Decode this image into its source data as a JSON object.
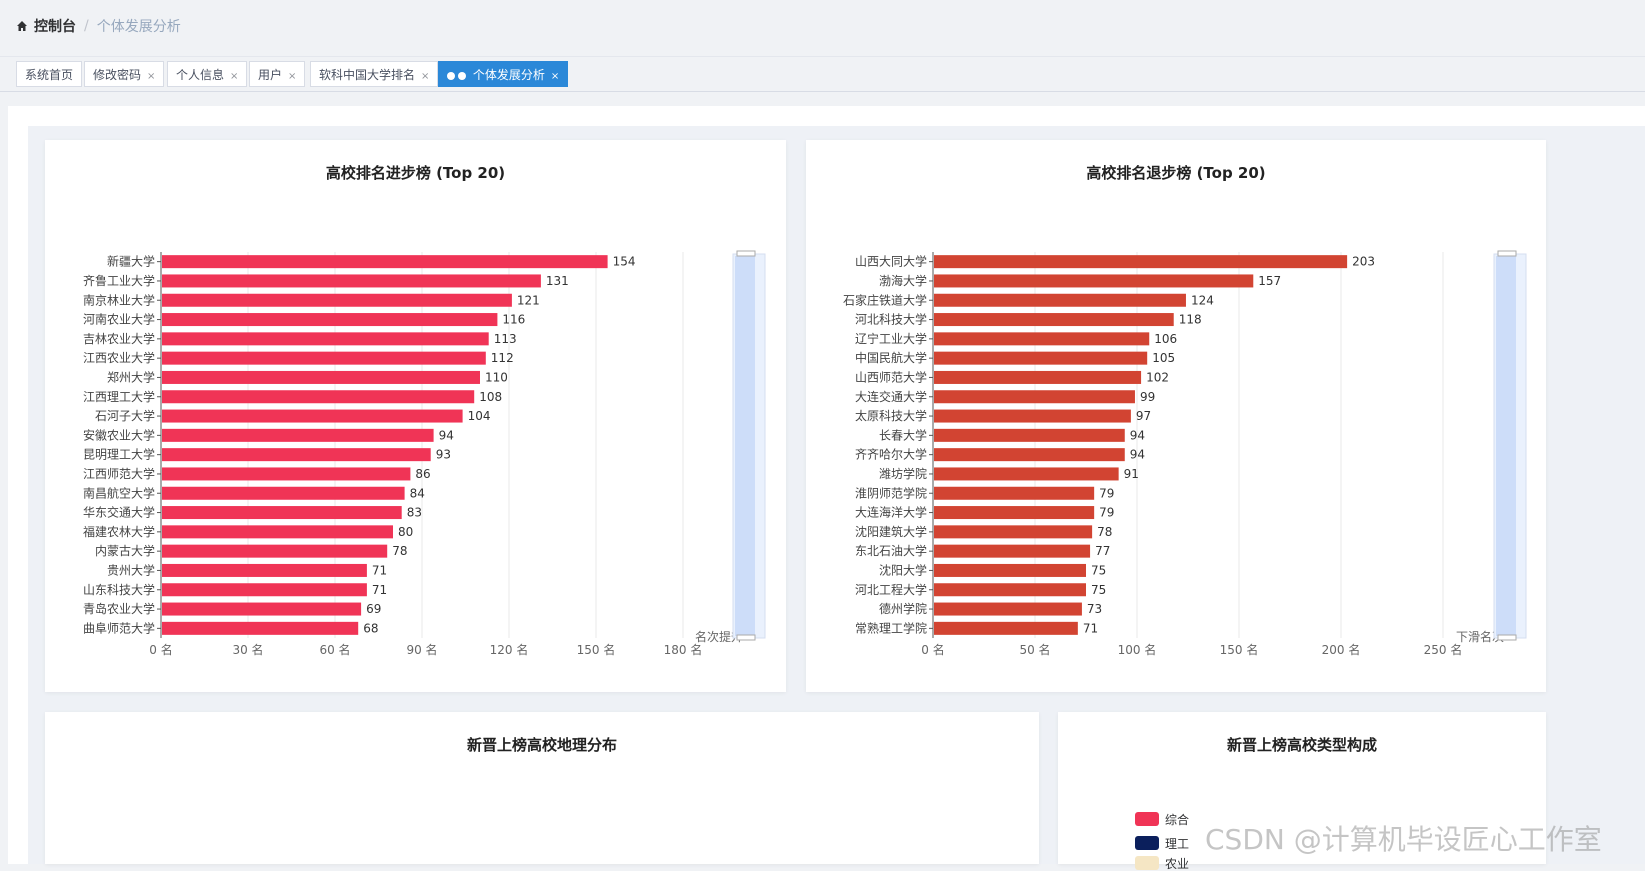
{
  "breadcrumb": {
    "home": "控制台",
    "separator": "/",
    "current": "个体发展分析"
  },
  "tabs": [
    {
      "label": "系统首页",
      "closable": false,
      "active": false
    },
    {
      "label": "修改密码",
      "closable": true,
      "active": false
    },
    {
      "label": "个人信息",
      "closable": true,
      "active": false
    },
    {
      "label": "用户",
      "closable": true,
      "active": false
    },
    {
      "label": "软科中国大学排名",
      "closable": true,
      "active": false
    },
    {
      "label": "个体发展分析",
      "closable": true,
      "active": true
    }
  ],
  "tab_close_glyph": "×",
  "colors": {
    "progress_bar": "#f03456",
    "decline_bar": "#d24432",
    "active_tab": "#2b88d8",
    "datazoom": "#c6d8f7"
  },
  "chart_data": [
    {
      "type": "bar",
      "orientation": "horizontal",
      "title": "高校排名进步榜 (Top 20)",
      "categories": [
        "新疆大学",
        "齐鲁工业大学",
        "南京林业大学",
        "河南农业大学",
        "吉林农业大学",
        "江西农业大学",
        "郑州大学",
        "江西理工大学",
        "石河子大学",
        "安徽农业大学",
        "昆明理工大学",
        "江西师范大学",
        "南昌航空大学",
        "华东交通大学",
        "福建农林大学",
        "内蒙古大学",
        "贵州大学",
        "山东科技大学",
        "青岛农业大学",
        "曲阜师范大学"
      ],
      "values": [
        154,
        131,
        121,
        116,
        113,
        112,
        110,
        108,
        104,
        94,
        93,
        86,
        84,
        83,
        80,
        78,
        71,
        71,
        69,
        68
      ],
      "xlim": [
        0,
        180
      ],
      "xticks": [
        0,
        30,
        60,
        90,
        120,
        150,
        180
      ],
      "tick_labels": [
        "0 名",
        "30 名",
        "60 名",
        "90 名",
        "120 名",
        "150 名",
        "180 名"
      ],
      "axis_name": "名次提升",
      "grid": true
    },
    {
      "type": "bar",
      "orientation": "horizontal",
      "title": "高校排名退步榜 (Top 20)",
      "categories": [
        "山西大同大学",
        "渤海大学",
        "石家庄铁道大学",
        "河北科技大学",
        "辽宁工业大学",
        "中国民航大学",
        "山西师范大学",
        "大连交通大学",
        "太原科技大学",
        "长春大学",
        "齐齐哈尔大学",
        "潍坊学院",
        "淮阴师范学院",
        "大连海洋大学",
        "沈阳建筑大学",
        "东北石油大学",
        "沈阳大学",
        "河北工程大学",
        "德州学院",
        "常熟理工学院"
      ],
      "values": [
        203,
        157,
        124,
        118,
        106,
        105,
        102,
        99,
        97,
        94,
        94,
        91,
        79,
        79,
        78,
        77,
        75,
        75,
        73,
        71
      ],
      "xlim": [
        0,
        250
      ],
      "xticks": [
        0,
        50,
        100,
        150,
        200,
        250
      ],
      "tick_labels": [
        "0 名",
        "50 名",
        "100 名",
        "150 名",
        "200 名",
        "250 名"
      ],
      "axis_name": "下滑名次",
      "grid": true
    },
    {
      "type": "map",
      "title": "新晋上榜高校地理分布"
    },
    {
      "type": "pie",
      "title": "新晋上榜高校类型构成",
      "legend": [
        {
          "name": "综合",
          "color": "#f03456"
        },
        {
          "name": "理工",
          "color": "#0b1f5c"
        },
        {
          "name": "农业",
          "color": "#f5e6c4"
        }
      ]
    }
  ],
  "watermark": "CSDN @计算机毕设匠心工作室"
}
